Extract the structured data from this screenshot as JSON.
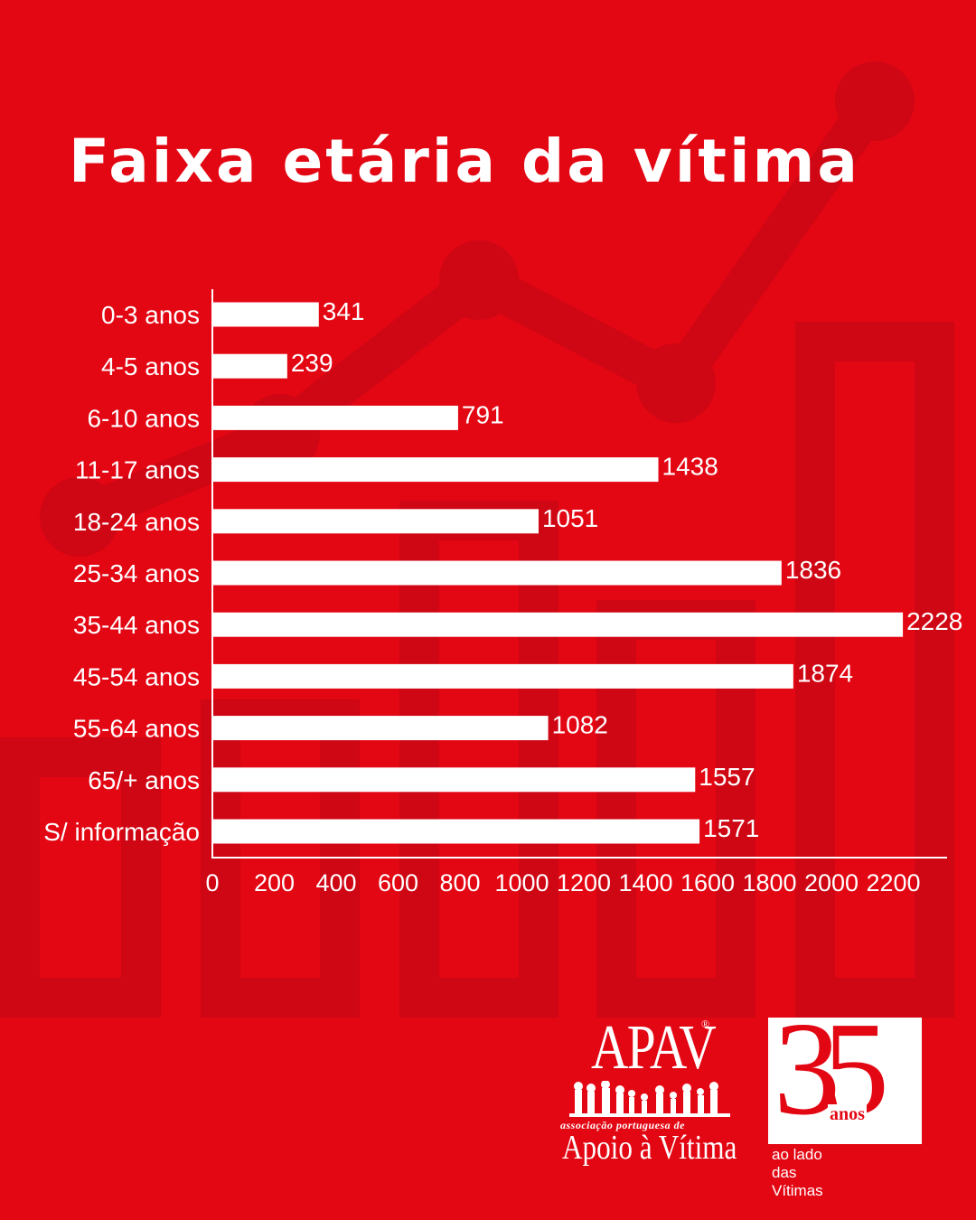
{
  "title": "Faixa etária da vítima",
  "colors": {
    "background": "#e30613",
    "decor": "#cf0614",
    "bar": "#ffffff",
    "text": "#ffffff"
  },
  "chart_data": {
    "type": "bar",
    "orientation": "horizontal",
    "title": "Faixa etária da vítima",
    "categories": [
      "0-3 anos",
      "4-5 anos",
      "6-10 anos",
      "11-17 anos",
      "18-24 anos",
      "25-34 anos",
      "35-44 anos",
      "45-54 anos",
      "55-64 anos",
      "65/+ anos",
      "S/ informação"
    ],
    "values": [
      341,
      239,
      791,
      1438,
      1051,
      1836,
      2228,
      1874,
      1082,
      1557,
      1571
    ],
    "xlim": [
      0,
      2400
    ],
    "xticks": [
      0,
      200,
      400,
      600,
      800,
      1000,
      1200,
      1400,
      1600,
      1800,
      2000,
      2200
    ],
    "grid": false,
    "data_labels": true
  },
  "logos": {
    "apav_name": "APAV",
    "apav_registered": "®",
    "apav_tagline": "associação portuguesa de",
    "apav_subtitle": "Apoio à Vítima",
    "anniversary_number": "35",
    "anniversary_unit": "anos",
    "anniversary_tagline": "ao lado das Vítimas"
  }
}
